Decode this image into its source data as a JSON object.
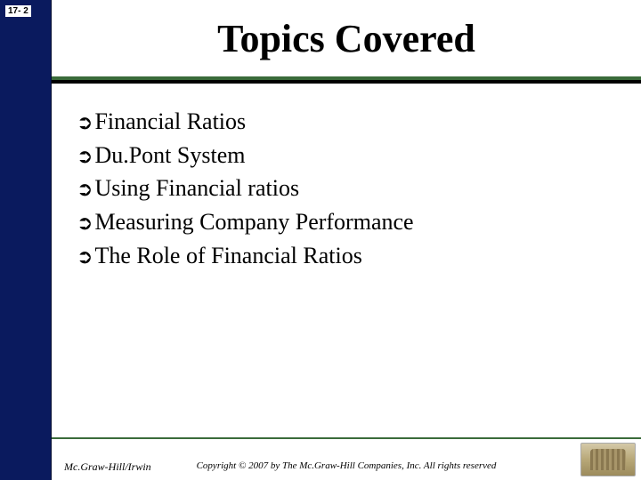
{
  "page_number": "17- 2",
  "title": "Topics Covered",
  "bullets": [
    "Financial Ratios",
    "Du.Pont System",
    "Using Financial ratios",
    "Measuring Company Performance",
    "The Role of Financial Ratios"
  ],
  "bullet_glyph": "➲",
  "footer": {
    "left": "Mc.Graw-Hill/Irwin",
    "center": "Copyright © 2007 by The Mc.Graw-Hill Companies, Inc. All rights reserved"
  },
  "colors": {
    "sidebar_gradient_start": "#0a1a5e",
    "sidebar_gradient_end": "#000000",
    "divider_color": "#3a6b3a",
    "background": "#ffffff",
    "text": "#000000"
  },
  "typography": {
    "title_fontsize": 44,
    "bullet_fontsize": 26,
    "footer_fontsize": 11
  }
}
